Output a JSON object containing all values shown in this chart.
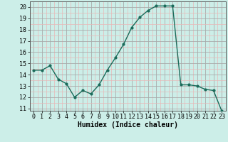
{
  "x": [
    0,
    1,
    2,
    3,
    4,
    5,
    6,
    7,
    8,
    9,
    10,
    11,
    12,
    13,
    14,
    15,
    16,
    17,
    18,
    19,
    20,
    21,
    22,
    23
  ],
  "y": [
    14.4,
    14.4,
    14.8,
    13.6,
    13.2,
    12.0,
    12.6,
    12.3,
    13.1,
    14.4,
    15.5,
    16.7,
    18.2,
    19.1,
    19.7,
    20.1,
    20.1,
    20.1,
    13.1,
    13.1,
    13.0,
    12.7,
    12.6,
    10.8
  ],
  "line_color": "#1a6b5a",
  "marker": "o",
  "marker_size": 2.0,
  "linewidth": 1.0,
  "xlabel": "Humidex (Indice chaleur)",
  "xlim": [
    -0.5,
    23.5
  ],
  "ylim": [
    10.8,
    20.5
  ],
  "yticks": [
    11,
    12,
    13,
    14,
    15,
    16,
    17,
    18,
    19,
    20
  ],
  "xticks": [
    0,
    1,
    2,
    3,
    4,
    5,
    6,
    7,
    8,
    9,
    10,
    11,
    12,
    13,
    14,
    15,
    16,
    17,
    18,
    19,
    20,
    21,
    22,
    23
  ],
  "xtick_labels": [
    "0",
    "1",
    "2",
    "3",
    "4",
    "5",
    "6",
    "7",
    "8",
    "9",
    "10",
    "11",
    "12",
    "13",
    "14",
    "15",
    "16",
    "17",
    "18",
    "19",
    "20",
    "21",
    "22",
    "23"
  ],
  "bg_color": "#cceee8",
  "grid_major_color": "#aaaaaa",
  "grid_minor_color": "#e8b8b8",
  "axis_label_fontsize": 7,
  "tick_fontsize": 6
}
